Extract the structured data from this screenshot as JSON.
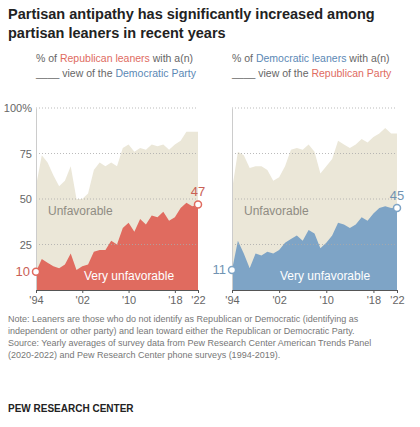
{
  "title": [
    "Partisan antipathy has significantly increased among",
    "partisan leaners in recent years"
  ],
  "chart_data": [
    {
      "type": "area",
      "subtitle": [
        [
          {
            "text": "% of "
          },
          {
            "text": "Republican leaners",
            "color": "#e06b5f"
          },
          {
            "text": " with a(n)"
          }
        ],
        [
          {
            "text": "____ view of the "
          },
          {
            "text": "Democratic Party",
            "color": "#5b88b5"
          }
        ]
      ],
      "x": [
        1994,
        1995,
        1996,
        1997,
        1998,
        1999,
        2000,
        2001,
        2002,
        2003,
        2004,
        2005,
        2006,
        2007,
        2008,
        2009,
        2010,
        2011,
        2012,
        2013,
        2014,
        2015,
        2016,
        2017,
        2018,
        2019,
        2020,
        2021,
        2022
      ],
      "xlim": [
        1994,
        2022
      ],
      "xticks": [
        {
          "value": 1994,
          "label": "'94"
        },
        {
          "value": 2002,
          "label": "'02"
        },
        {
          "value": 2010,
          "label": "'10"
        },
        {
          "value": 2018,
          "label": "'18"
        },
        {
          "value": 2022,
          "label": "'22"
        }
      ],
      "ylim": [
        0,
        100
      ],
      "yticks": [
        25,
        50,
        75,
        {
          "value": 100,
          "label": "100%"
        }
      ],
      "grid": true,
      "stacked": false,
      "series": [
        {
          "name": "Unfavorable",
          "color": "#ebe7d8",
          "values": [
            57,
            74,
            70,
            63,
            57,
            60,
            68,
            50,
            50,
            53,
            66,
            70,
            68,
            70,
            68,
            78,
            80,
            76,
            78,
            77,
            80,
            79,
            80,
            77,
            80,
            82,
            87,
            87,
            87
          ]
        },
        {
          "name": "Very unfavorable",
          "color": "#e06b5f",
          "values": [
            10,
            17,
            15,
            13,
            12,
            14,
            20,
            11,
            13,
            14,
            21,
            22,
            22,
            27,
            25,
            34,
            37,
            32,
            39,
            36,
            41,
            40,
            43,
            38,
            40,
            45,
            48,
            46,
            47
          ],
          "value_labels": [
            "10",
            null,
            null,
            null,
            null,
            null,
            null,
            null,
            null,
            null,
            null,
            null,
            null,
            null,
            null,
            null,
            null,
            null,
            null,
            null,
            null,
            null,
            null,
            null,
            null,
            null,
            null,
            null,
            "47"
          ]
        }
      ]
    },
    {
      "type": "area",
      "subtitle": [
        [
          {
            "text": "% of "
          },
          {
            "text": "Democratic leaners",
            "color": "#5b88b5"
          },
          {
            "text": " with a(n)"
          }
        ],
        [
          {
            "text": "____ view of the "
          },
          {
            "text": "Republican Party",
            "color": "#e06b5f"
          }
        ]
      ],
      "x": [
        1994,
        1995,
        1996,
        1997,
        1998,
        1999,
        2000,
        2001,
        2002,
        2003,
        2004,
        2005,
        2006,
        2007,
        2008,
        2009,
        2010,
        2011,
        2012,
        2013,
        2014,
        2015,
        2016,
        2017,
        2018,
        2019,
        2020,
        2021,
        2022
      ],
      "xlim": [
        1994,
        2022
      ],
      "xticks": [
        {
          "value": 1994,
          "label": "'94"
        },
        {
          "value": 2002,
          "label": "'02"
        },
        {
          "value": 2010,
          "label": "'10"
        },
        {
          "value": 2018,
          "label": "'18"
        },
        {
          "value": 2022,
          "label": "'22"
        }
      ],
      "ylim": [
        0,
        100
      ],
      "yticks": [
        25,
        50,
        75,
        100
      ],
      "grid": true,
      "stacked": false,
      "tick_labels": "x",
      "series": [
        {
          "name": "Unfavorable",
          "color": "#ebe7d8",
          "values": [
            55,
            76,
            74,
            67,
            68,
            68,
            66,
            60,
            62,
            68,
            77,
            78,
            77,
            80,
            76,
            64,
            68,
            72,
            82,
            80,
            78,
            80,
            83,
            81,
            84,
            86,
            89,
            86,
            86
          ]
        },
        {
          "name": "Very unfavorable",
          "color": "#7ea4c6",
          "values": [
            11,
            27,
            20,
            12,
            20,
            19,
            21,
            20,
            22,
            26,
            28,
            30,
            27,
            33,
            31,
            23,
            26,
            30,
            37,
            36,
            34,
            36,
            40,
            38,
            42,
            45,
            46,
            45,
            45
          ],
          "value_labels": [
            "11",
            null,
            null,
            null,
            null,
            null,
            null,
            null,
            null,
            null,
            null,
            null,
            null,
            null,
            null,
            null,
            null,
            null,
            null,
            null,
            null,
            null,
            null,
            null,
            null,
            null,
            null,
            null,
            "45"
          ]
        }
      ]
    }
  ],
  "note": [
    "Note: Leaners are those who do not identify as Republican or Democratic (identifying as",
    "independent or other party) and lean toward either the Republican or Democratic Party."
  ],
  "source": [
    "Source: Yearly averages of survey data from Pew Research Center American Trends Panel",
    "(2020-2022) and Pew Research Center phone surveys (1994-2019)."
  ],
  "credit": "PEW RESEARCH CENTER"
}
